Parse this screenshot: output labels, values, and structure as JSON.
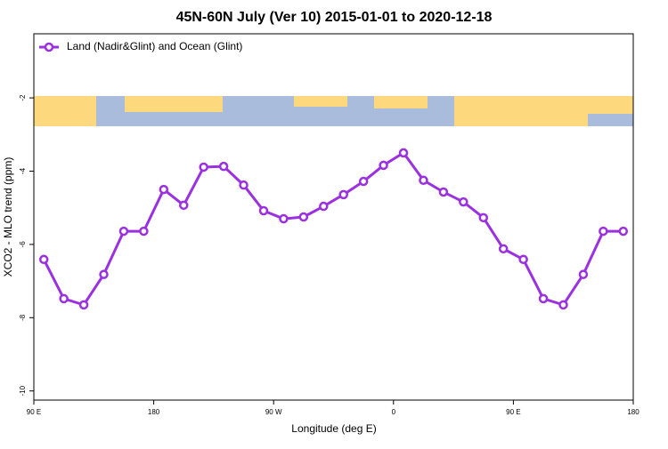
{
  "chart_data": {
    "type": "line",
    "title": "45N-60N July (Ver 10)   2015-01-01 to 2020-12-18",
    "x_label": "Longitude (deg E)",
    "y_label": "XCO2 - MLO trend (ppm)",
    "x": [
      97.5,
      112.5,
      127.5,
      142.5,
      157.5,
      172.5,
      187.5,
      202.5,
      217.5,
      232.5,
      247.5,
      262.5,
      277.5,
      292.5,
      307.5,
      322.5,
      337.5,
      352.5,
      367.5,
      382.5,
      397.5,
      412.5,
      427.5,
      442.5,
      457.5,
      472.5,
      487.5,
      502.5,
      517.5,
      532.5
    ],
    "series": [
      {
        "name": "Land (Nadir&Glint) and Ocean (Glint)",
        "color": "#9b30e0",
        "values": [
          -6.41,
          -7.48,
          -7.65,
          -6.82,
          -5.64,
          -5.64,
          -4.5,
          -4.93,
          -3.89,
          -3.87,
          -4.38,
          -5.08,
          -5.3,
          -5.25,
          -4.96,
          -4.64,
          -4.28,
          -3.84,
          -3.5,
          -4.25,
          -4.57,
          -4.84,
          -5.27,
          -6.12,
          -6.41,
          -7.48,
          -7.65,
          -6.82,
          -5.64,
          -5.64
        ]
      }
    ],
    "xlim": [
      90,
      540
    ],
    "xticks": [
      {
        "value": 90,
        "label": "90 E"
      },
      180,
      {
        "value": 270,
        "label": "90 W"
      },
      {
        "value": 360,
        "label": "0"
      },
      {
        "value": 450,
        "label": "90 E"
      },
      {
        "value": 540,
        "label": "180"
      }
    ],
    "ylim": [
      -10.25,
      -0.25
    ],
    "yticks": [
      -10,
      -8,
      -6,
      -4,
      -2
    ],
    "legend": "top-left"
  }
}
